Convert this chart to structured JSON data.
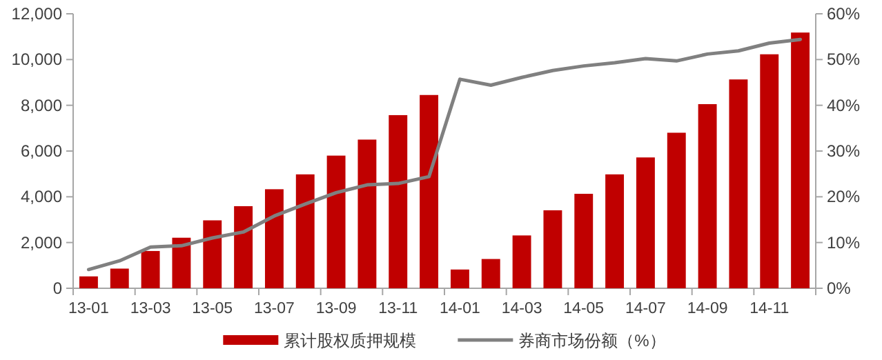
{
  "chart_data": {
    "type": "bar",
    "categories": [
      "13-01",
      null,
      "13-03",
      null,
      "13-05",
      null,
      "13-07",
      null,
      "13-09",
      null,
      "13-11",
      null,
      "14-01",
      null,
      "14-03",
      null,
      "14-05",
      null,
      "14-07",
      null,
      "14-09",
      null,
      "14-11",
      null
    ],
    "series": [
      {
        "name": "累计股权质押规模",
        "color": "#c00000",
        "values": [
          520,
          860,
          1630,
          2210,
          2970,
          3590,
          4330,
          4980,
          5800,
          6500,
          7570,
          8450,
          820,
          1280,
          2310,
          3410,
          4130,
          4980,
          5720,
          6800,
          8050,
          9130,
          10230,
          11180
        ]
      },
      {
        "name": "券商市场份额（%）",
        "type": "line",
        "axis": "y2",
        "color": "#808080",
        "values": [
          4.1,
          6.0,
          9.0,
          9.3,
          11.0,
          12.3,
          15.8,
          18.4,
          20.9,
          22.6,
          22.9,
          24.4,
          45.7,
          44.4,
          46.1,
          47.6,
          48.6,
          49.3,
          50.2,
          49.7,
          51.2,
          51.9,
          53.6,
          54.4
        ]
      }
    ],
    "ylim": [
      0,
      12000
    ],
    "yticks": [
      {
        "value": 0,
        "label": "0"
      },
      {
        "value": 2000,
        "label": "2,000"
      },
      {
        "value": 4000,
        "label": "4,000"
      },
      {
        "value": 6000,
        "label": "6,000"
      },
      {
        "value": 8000,
        "label": "8,000"
      },
      {
        "value": 10000,
        "label": "10,000"
      },
      {
        "value": 12000,
        "label": "12,000"
      }
    ],
    "y2lim": [
      0,
      60
    ],
    "y2ticks": [
      {
        "value": 0,
        "label": "0%"
      },
      {
        "value": 10,
        "label": "10%"
      },
      {
        "value": 20,
        "label": "20%"
      },
      {
        "value": 30,
        "label": "30%"
      },
      {
        "value": 40,
        "label": "40%"
      },
      {
        "value": 50,
        "label": "50%"
      },
      {
        "value": 60,
        "label": "60%"
      }
    ],
    "grid": false,
    "legend": "bottom",
    "marker": "none",
    "line_style": "solid"
  }
}
